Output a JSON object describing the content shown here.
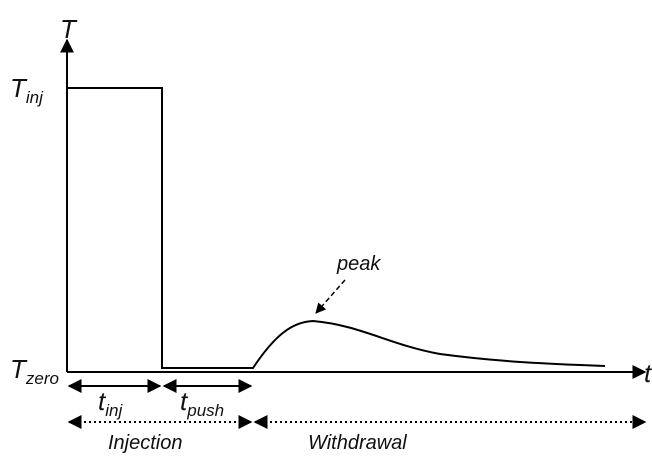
{
  "axes": {
    "y": "T",
    "x": "t"
  },
  "levels": [
    {
      "symbol": "T",
      "subscript": "inj"
    },
    {
      "symbol": "T",
      "subscript": "zero"
    }
  ],
  "intervals": [
    {
      "symbol": "t",
      "subscript": "inj"
    },
    {
      "symbol": "t",
      "subscript": "push"
    }
  ],
  "annotation": "peak",
  "phases": [
    "Injection",
    "Withdrawal"
  ]
}
